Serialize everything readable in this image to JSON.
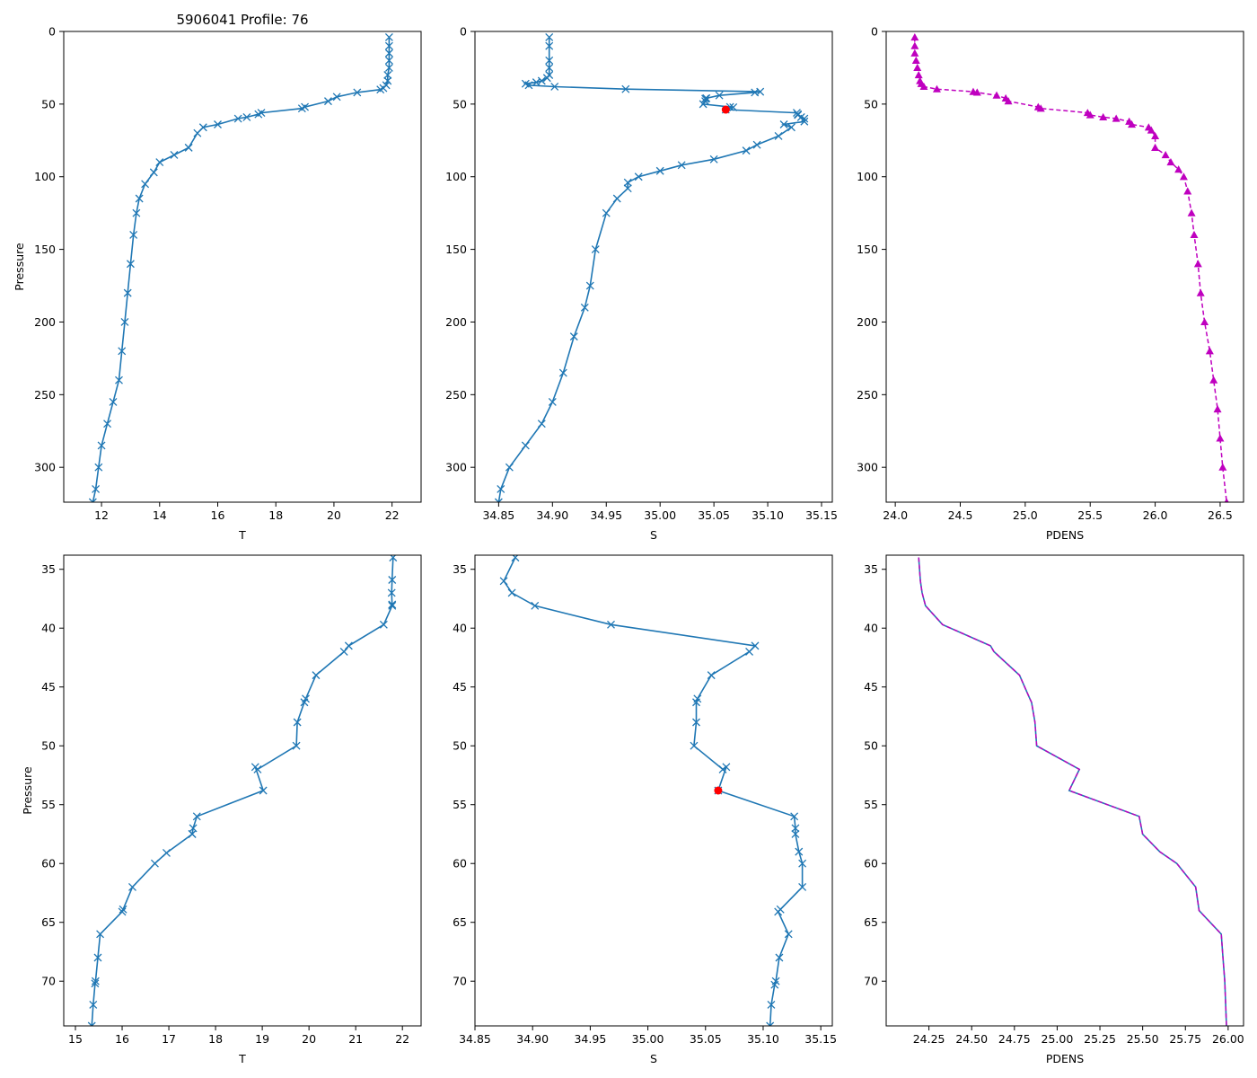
{
  "figure": {
    "title": "5906041 Profile: 76"
  },
  "colors": {
    "line": "#1f77b4",
    "pdens": "#bf00bf",
    "qc": "#ff0000",
    "axis": "#000000"
  },
  "chart_data": [
    {
      "id": "top-T",
      "type": "line",
      "marker": "x",
      "xlabel": "T",
      "ylabel": "Pressure",
      "xlim": [
        10.7,
        23.0
      ],
      "ylim": [
        324,
        0
      ],
      "xticks": [
        12,
        14,
        16,
        18,
        20,
        22
      ],
      "yticks": [
        0,
        50,
        100,
        150,
        200,
        250,
        300
      ],
      "series": [
        {
          "name": "T",
          "x": [
            21.9,
            21.9,
            21.9,
            21.9,
            21.9,
            21.85,
            21.85,
            21.8,
            21.7,
            21.6,
            20.8,
            20.1,
            19.8,
            19.0,
            18.9,
            17.5,
            17.4,
            17.0,
            16.7,
            16.0,
            15.5,
            15.3,
            15.0,
            14.5,
            14.0,
            13.8,
            13.5,
            13.3,
            13.2,
            13.1,
            13.0,
            12.9,
            12.8,
            12.7,
            12.6,
            12.4,
            12.2,
            12.0,
            11.9,
            11.8,
            11.7
          ],
          "y": [
            4,
            10,
            15,
            20,
            25,
            30,
            34,
            37,
            39,
            40,
            42,
            45,
            48,
            52,
            53,
            56,
            57,
            59,
            60,
            64,
            66,
            70,
            80,
            85,
            90,
            97,
            105,
            115,
            125,
            140,
            160,
            180,
            200,
            220,
            240,
            255,
            270,
            285,
            300,
            315,
            324
          ]
        }
      ]
    },
    {
      "id": "top-S",
      "type": "line",
      "marker": "x",
      "xlabel": "S",
      "xlim": [
        34.828,
        35.16
      ],
      "ylim": [
        324,
        0
      ],
      "xticks": [
        34.85,
        34.9,
        34.95,
        35.0,
        35.05,
        35.1,
        35.15
      ],
      "yticks": [
        0,
        50,
        100,
        150,
        200,
        250,
        300
      ],
      "series": [
        {
          "name": "S",
          "x": [
            34.897,
            34.897,
            34.897,
            34.897,
            34.897,
            34.895,
            34.89,
            34.885,
            34.875,
            34.878,
            34.902,
            34.968,
            35.093,
            35.088,
            35.055,
            35.043,
            35.042,
            35.042,
            35.04,
            35.065,
            35.068,
            35.061,
            35.127,
            35.128,
            35.128,
            35.131,
            35.134,
            35.134,
            35.115,
            35.122,
            35.11,
            35.09,
            35.08,
            35.05,
            35.02,
            35.0,
            34.98,
            34.97,
            34.97,
            34.96,
            34.95,
            34.94,
            34.935,
            34.93,
            34.92,
            34.91,
            34.9,
            34.89,
            34.875,
            34.86,
            34.852,
            34.85
          ],
          "y": [
            4,
            10,
            20,
            25,
            30,
            32,
            34,
            35,
            36,
            37,
            38,
            39.7,
            41.5,
            42,
            44,
            46,
            46.3,
            48,
            50,
            52,
            52.2,
            53.8,
            56,
            57,
            57.5,
            59,
            60,
            62,
            64,
            66,
            72,
            78,
            82,
            88,
            92,
            96,
            100,
            104,
            108,
            115,
            125,
            150,
            175,
            190,
            210,
            235,
            255,
            270,
            285,
            300,
            315,
            324
          ]
        }
      ],
      "qc_point": {
        "x": 35.061,
        "y": 53.8
      }
    },
    {
      "id": "top-PDENS",
      "type": "scatter",
      "marker": "triangle",
      "xlabel": "PDENS",
      "xlim": [
        23.93,
        26.68
      ],
      "ylim": [
        324,
        0
      ],
      "xticks": [
        24.0,
        24.5,
        25.0,
        25.5,
        26.0,
        26.5
      ],
      "yticks": [
        0,
        50,
        100,
        150,
        200,
        250,
        300
      ],
      "series": [
        {
          "name": "PDENS",
          "x": [
            24.15,
            24.15,
            24.15,
            24.16,
            24.17,
            24.18,
            24.19,
            24.2,
            24.22,
            24.32,
            24.6,
            24.63,
            24.78,
            24.85,
            24.87,
            25.1,
            25.12,
            25.48,
            25.5,
            25.6,
            25.7,
            25.8,
            25.82,
            25.95,
            25.97,
            26.0,
            26.0,
            26.08,
            26.12,
            26.18,
            26.22,
            26.25,
            26.28,
            26.3,
            26.33,
            26.35,
            26.38,
            26.42,
            26.45,
            26.48,
            26.5,
            26.52,
            26.55
          ],
          "y": [
            4,
            10,
            15,
            20,
            25,
            30,
            34,
            36,
            38,
            39.7,
            41.5,
            42,
            44,
            46,
            48,
            52,
            53,
            56,
            57.5,
            59,
            60,
            62,
            64,
            66,
            68,
            72,
            80,
            85,
            90,
            95,
            100,
            110,
            125,
            140,
            160,
            180,
            200,
            220,
            240,
            260,
            280,
            300,
            324
          ]
        }
      ]
    },
    {
      "id": "bottom-T",
      "type": "line",
      "marker": "x",
      "xlabel": "T",
      "ylabel": "Pressure",
      "xlim": [
        14.75,
        22.4
      ],
      "ylim": [
        73.8,
        33.8
      ],
      "xticks": [
        15,
        16,
        17,
        18,
        19,
        20,
        21,
        22
      ],
      "yticks": [
        35,
        40,
        45,
        50,
        55,
        60,
        65,
        70
      ],
      "series": [
        {
          "name": "T",
          "x": [
            21.8,
            21.78,
            21.77,
            21.78,
            21.78,
            21.6,
            20.85,
            20.75,
            20.15,
            19.93,
            19.9,
            19.75,
            19.73,
            18.9,
            18.85,
            19.02,
            17.6,
            17.52,
            17.5,
            17.5,
            16.95,
            16.7,
            16.22,
            16.02,
            16.0,
            15.53,
            15.48,
            15.43,
            15.42,
            15.38,
            15.35
          ],
          "y": [
            34,
            35.9,
            37,
            38,
            38.1,
            39.7,
            41.5,
            42,
            44,
            46,
            46.3,
            48,
            50,
            52,
            51.8,
            53.8,
            56,
            57,
            57.5,
            57.5,
            59.1,
            60,
            62,
            63.9,
            64.1,
            66,
            68,
            70,
            70.2,
            72,
            73.8
          ]
        }
      ]
    },
    {
      "id": "bottom-S",
      "type": "line",
      "marker": "x",
      "xlabel": "S",
      "xlim": [
        34.85,
        35.16
      ],
      "ylim": [
        73.8,
        33.8
      ],
      "xticks": [
        34.85,
        34.9,
        34.95,
        35.0,
        35.05,
        35.1,
        35.15
      ],
      "yticks": [
        35,
        40,
        45,
        50,
        55,
        60,
        65,
        70
      ],
      "series": [
        {
          "name": "S",
          "x": [
            34.885,
            34.875,
            34.882,
            34.902,
            34.968,
            35.093,
            35.088,
            35.055,
            35.043,
            35.042,
            35.042,
            35.04,
            35.065,
            35.068,
            35.061,
            35.127,
            35.128,
            35.128,
            35.131,
            35.134,
            35.134,
            35.115,
            35.113,
            35.122,
            35.114,
            35.111,
            35.11,
            35.107,
            35.106
          ],
          "y": [
            34,
            36,
            37,
            38.1,
            39.7,
            41.5,
            42,
            44,
            46,
            46.3,
            48,
            50,
            52,
            51.8,
            53.8,
            56,
            57,
            57.5,
            59,
            60,
            62,
            63.9,
            64.1,
            66,
            68,
            70,
            70.3,
            72,
            73.8
          ]
        }
      ],
      "qc_point": {
        "x": 35.061,
        "y": 53.8
      }
    },
    {
      "id": "bottom-PDENS",
      "type": "line",
      "marker": "none",
      "xlabel": "PDENS",
      "xlim": [
        24.0,
        26.09
      ],
      "ylim": [
        73.8,
        33.8
      ],
      "xticks": [
        24.25,
        24.5,
        24.75,
        25.0,
        25.25,
        25.5,
        25.75,
        26.0
      ],
      "yticks": [
        35,
        40,
        45,
        50,
        55,
        60,
        65,
        70
      ],
      "series": [
        {
          "name": "PDENS",
          "x": [
            24.19,
            24.2,
            24.21,
            24.23,
            24.33,
            24.61,
            24.63,
            24.78,
            24.84,
            24.85,
            24.87,
            24.88,
            25.13,
            25.07,
            25.48,
            25.5,
            25.6,
            25.7,
            25.81,
            25.83,
            25.96,
            25.97,
            25.98,
            25.99
          ],
          "y": [
            34,
            36,
            37,
            38.1,
            39.7,
            41.5,
            42,
            44,
            46,
            46.3,
            48,
            50,
            52,
            53.8,
            56,
            57.5,
            59,
            60,
            62,
            64,
            66,
            68,
            70,
            73.8
          ]
        }
      ]
    }
  ]
}
